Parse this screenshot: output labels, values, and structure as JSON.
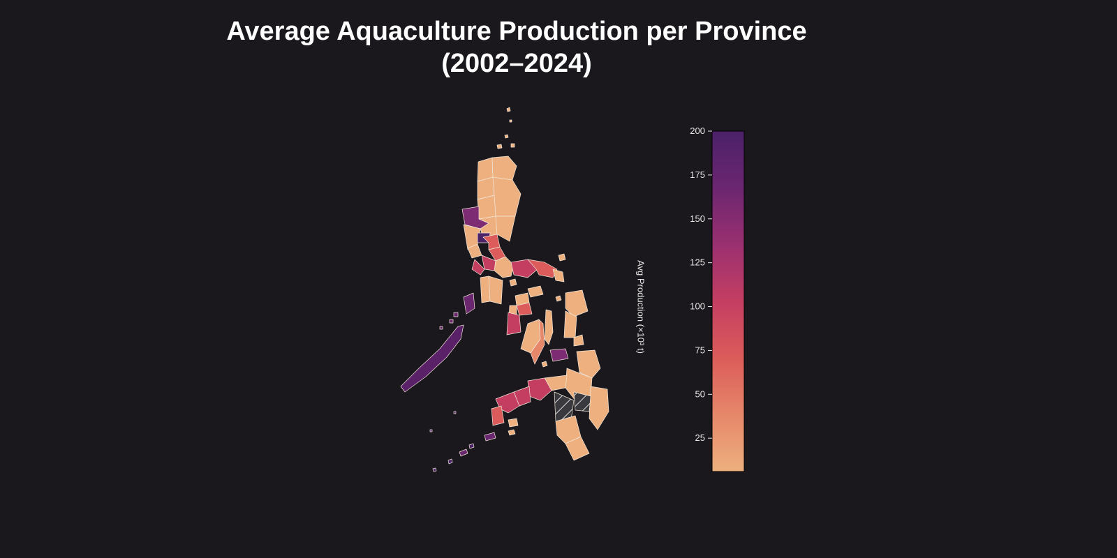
{
  "title_line1": "Average Aquaculture Production per Province",
  "title_line2": "(2002–2024)",
  "colorbar": {
    "label": "Avg Production (×10³ t)",
    "min": 6,
    "max": 200,
    "ticks": [
      25,
      50,
      75,
      100,
      125,
      150,
      175,
      200
    ],
    "stops": [
      "#edb07e",
      "#e6876a",
      "#db5c5a",
      "#c43e62",
      "#9a3070",
      "#6b2670",
      "#4b2168"
    ]
  },
  "colors": {
    "background": "#1a181c",
    "border": "#f2e6da",
    "no_data": "#3a3a3e"
  }
}
